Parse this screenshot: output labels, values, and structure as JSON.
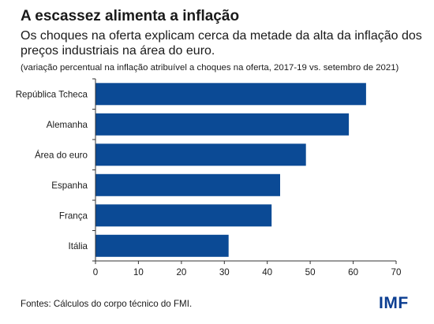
{
  "header": {
    "title": "A escassez alimenta a inflação",
    "subtitle": "Os choques na oferta explicam cerca da metade da alta da inflação dos preços industriais na área do euro.",
    "note": "(variação percentual na inflação atribuível a choques na oferta, 2017-19 vs. setembro de 2021)"
  },
  "footer": {
    "source": "Fontes: Cálculos do corpo técnico do FMI.",
    "logo_text": "IMF"
  },
  "colors": {
    "bar": "#0b4a95",
    "axis": "#333333"
  },
  "chart_data": {
    "type": "bar",
    "orientation": "horizontal",
    "categories": [
      "República Tcheca",
      "Alemanha",
      "Área do euro",
      "Espanha",
      "França",
      "Itália"
    ],
    "values": [
      63,
      59,
      49,
      43,
      41,
      31
    ],
    "xlim": [
      0,
      70
    ],
    "xticks": [
      0,
      10,
      20,
      30,
      40,
      50,
      60,
      70
    ],
    "grid": false,
    "legend": "none"
  }
}
